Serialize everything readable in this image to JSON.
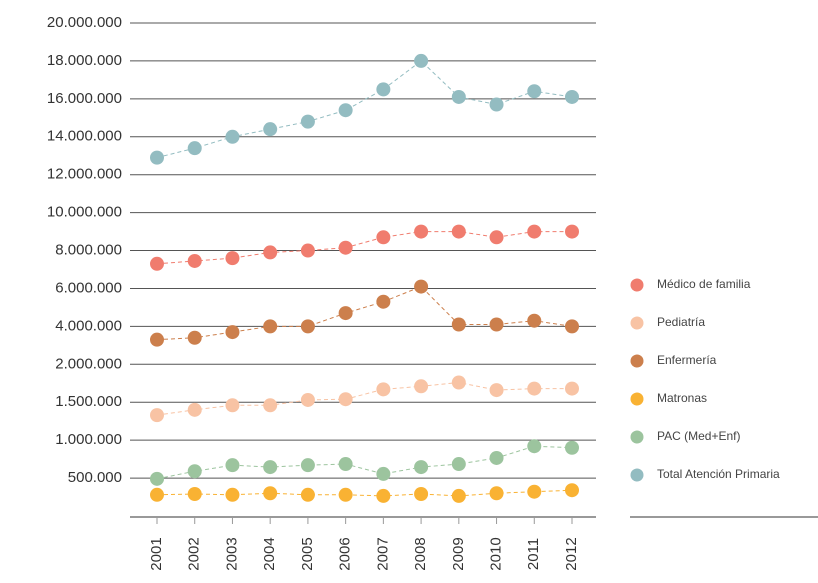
{
  "chart_data": {
    "type": "line",
    "categories": [
      "2001",
      "2002",
      "2003",
      "2004",
      "2005",
      "2006",
      "2007",
      "2008",
      "2009",
      "2010",
      "2011",
      "2012"
    ],
    "series": [
      {
        "name": "Médico de familia",
        "color": "#f07c6e",
        "values": [
          7300000,
          7450000,
          7600000,
          7900000,
          8000000,
          8150000,
          8700000,
          9000000,
          9000000,
          8700000,
          9000000,
          9000000
        ]
      },
      {
        "name": "Pediatría",
        "color": "#f8c3a4",
        "values": [
          1330000,
          1400000,
          1460000,
          1460000,
          1530000,
          1540000,
          1670000,
          1710000,
          1760000,
          1660000,
          1680000,
          1680000
        ]
      },
      {
        "name": "Enfermería",
        "color": "#cc7f4c",
        "values": [
          3300000,
          3400000,
          3700000,
          4000000,
          4000000,
          4700000,
          5300000,
          6100000,
          4100000,
          4100000,
          4300000,
          4000000
        ]
      },
      {
        "name": "Matronas",
        "color": "#f9b233",
        "values": [
          280000,
          290000,
          280000,
          300000,
          280000,
          280000,
          265000,
          290000,
          265000,
          300000,
          320000,
          340000
        ]
      },
      {
        "name": "PAC (Med+Enf)",
        "color": "#9cc49e",
        "values": [
          490000,
          590000,
          670000,
          645000,
          670000,
          685000,
          555000,
          645000,
          685000,
          765000,
          920000,
          900000
        ]
      },
      {
        "name": "Total Atención Primaria",
        "color": "#93bcc1",
        "values": [
          12900000,
          13400000,
          14000000,
          14400000,
          14800000,
          15400000,
          16500000,
          18000000,
          16100000,
          15700000,
          16400000,
          16100000
        ]
      }
    ],
    "ylim": [
      0,
      20000000
    ],
    "yscale": "piecewise",
    "yticks": [
      {
        "value": 500000,
        "label": "500.000"
      },
      {
        "value": 1000000,
        "label": "1.000.000"
      },
      {
        "value": 1500000,
        "label": "1.500.000"
      },
      {
        "value": 2000000,
        "label": "2.000.000"
      },
      {
        "value": 4000000,
        "label": "4.000.000"
      },
      {
        "value": 6000000,
        "label": "6.000.000"
      },
      {
        "value": 8000000,
        "label": "8.000.000"
      },
      {
        "value": 10000000,
        "label": "10.000.000"
      },
      {
        "value": 12000000,
        "label": "12.000.000"
      },
      {
        "value": 14000000,
        "label": "14.000.000"
      },
      {
        "value": 16000000,
        "label": "16.000.000"
      },
      {
        "value": 18000000,
        "label": "18.000.000"
      },
      {
        "value": 20000000,
        "label": "20.000.000"
      }
    ],
    "grid": true,
    "legend": "right"
  }
}
